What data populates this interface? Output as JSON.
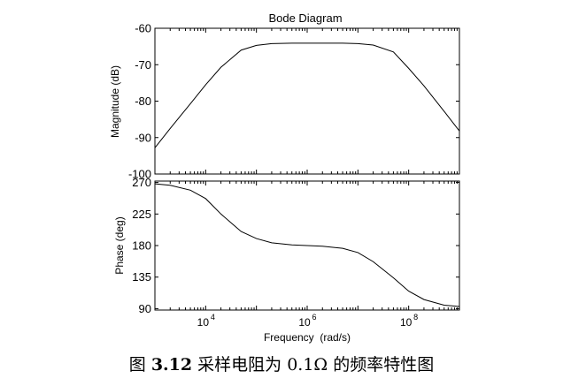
{
  "chart_data": [
    {
      "type": "line",
      "title": "Bode Diagram",
      "ylabel": "Magnitude (dB)",
      "xlabel": "",
      "xscale": "log",
      "xlim": [
        1000,
        1000000000
      ],
      "ylim": [
        -100,
        -60
      ],
      "yticks": [
        "-60",
        "-70",
        "-80",
        "-90",
        "-100"
      ],
      "grid": false,
      "series": [
        {
          "x": [
            1000,
            2000,
            5000,
            10000,
            20000,
            50000,
            100000,
            200000,
            500000,
            1000000,
            2000000,
            5000000,
            10000000,
            20000000,
            50000000,
            100000000,
            200000000,
            500000000,
            1000000000
          ],
          "values": [
            -92.8,
            -87.5,
            -80.7,
            -75.5,
            -70.7,
            -66,
            -64.7,
            -64.2,
            -64.1,
            -64.1,
            -64.1,
            -64.1,
            -64.2,
            -64.6,
            -66.5,
            -71,
            -75.8,
            -82.8,
            -88.2
          ]
        }
      ]
    },
    {
      "type": "line",
      "title": "",
      "ylabel": "Phase (deg)",
      "xlabel": "Frequency  (rad/s)",
      "xscale": "log",
      "xlim": [
        1000,
        1000000000
      ],
      "ylim": [
        88,
        272
      ],
      "yticks": [
        "270",
        "225",
        "180",
        "135",
        "90"
      ],
      "xticks": [
        {
          "base": "10",
          "exp": "4",
          "value": 10000
        },
        {
          "base": "10",
          "exp": "6",
          "value": 1000000
        },
        {
          "base": "10",
          "exp": "8",
          "value": 100000000
        }
      ],
      "grid": false,
      "series": [
        {
          "x": [
            1000,
            2000,
            5000,
            10000,
            20000,
            50000,
            100000,
            200000,
            500000,
            1000000,
            2000000,
            5000000,
            10000000,
            20000000,
            50000000,
            100000000,
            200000000,
            500000000,
            1000000000
          ],
          "values": [
            268,
            266,
            259,
            247,
            225,
            200,
            190,
            184,
            181,
            180,
            179,
            176,
            170,
            157,
            134,
            115,
            103,
            95,
            93
          ]
        }
      ]
    }
  ],
  "caption": {
    "prefix": "图 ",
    "number": "3.12",
    "text": "采样电阻为 0.1Ω 的频率特性图"
  }
}
